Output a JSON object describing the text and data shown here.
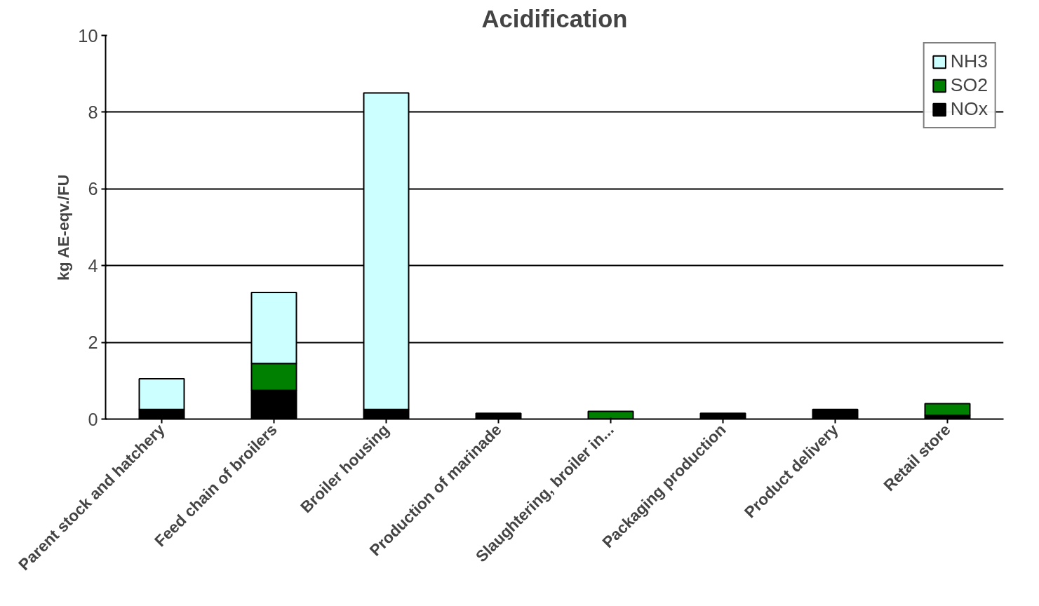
{
  "chart_data": {
    "type": "bar",
    "title": "Acidification",
    "ylabel": "kg AE-eqv./FU",
    "categories": [
      "Parent stock and hatchery",
      "Feed chain of broilers",
      "Broiler housing",
      "Production of marinade",
      "Slaughtering, broiler in...",
      "Packaging production",
      "Product delivery",
      "Retail store"
    ],
    "stacked": true,
    "series": [
      {
        "name": "NOx",
        "color": "#000000",
        "values": [
          0.25,
          0.75,
          0.25,
          0.15,
          null,
          0.15,
          0.25,
          0.1
        ]
      },
      {
        "name": "SO2",
        "color": "#008000",
        "values": [
          0,
          0.7,
          0,
          0,
          0.2,
          0,
          0,
          0.3
        ]
      },
      {
        "name": "NH3",
        "color": "#ccffff",
        "values": [
          0.8,
          1.85,
          8.25,
          0,
          0,
          0,
          0,
          0
        ]
      }
    ],
    "ylim": [
      0,
      10
    ],
    "yticks": [
      0,
      2,
      4,
      6,
      8,
      10
    ],
    "grid": "y",
    "legend": "top right"
  }
}
